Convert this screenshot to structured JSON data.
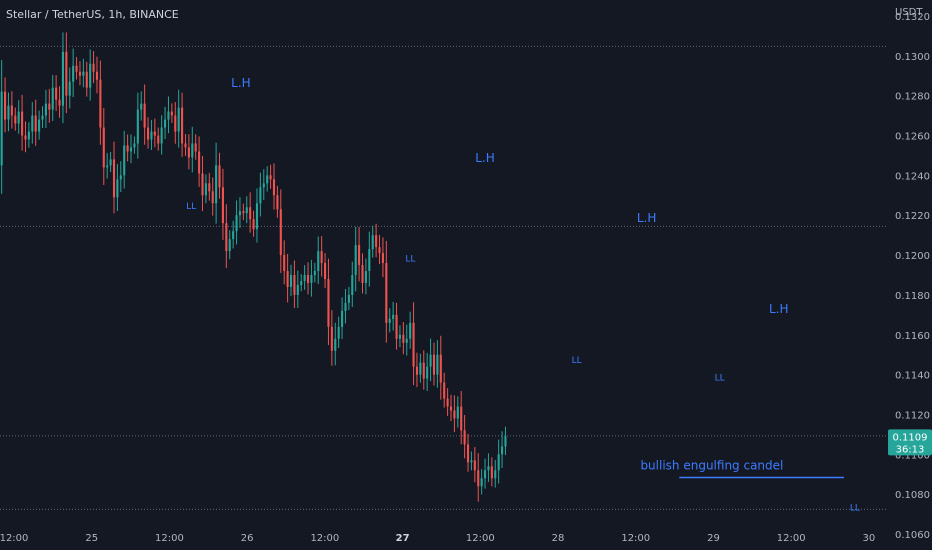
{
  "chart_data": {
    "type": "candlestick",
    "title": "Stellar / TetherUS, 1h, BINANCE",
    "ylabel": "USDT",
    "ylim": [
      0.1052,
      0.1328
    ],
    "xlim": [
      -0.09,
      5.61
    ],
    "grid": false,
    "y_ticks": [
      0.106,
      0.108,
      0.11,
      0.112,
      0.114,
      0.116,
      0.118,
      0.12,
      0.122,
      0.124,
      0.126,
      0.128,
      0.13,
      0.132
    ],
    "x_ticks": [
      {
        "pos": 0.0,
        "label": "12:00"
      },
      {
        "pos": 0.5,
        "label": "25"
      },
      {
        "pos": 1.0,
        "label": "12:00"
      },
      {
        "pos": 1.5,
        "label": "26"
      },
      {
        "pos": 2.0,
        "label": "12:00"
      },
      {
        "pos": 2.5,
        "label": "27",
        "bold": true
      },
      {
        "pos": 3.0,
        "label": "12:00"
      },
      {
        "pos": 3.5,
        "label": "28"
      },
      {
        "pos": 4.0,
        "label": "12:00"
      },
      {
        "pos": 4.5,
        "label": "29"
      },
      {
        "pos": 5.0,
        "label": "12:00"
      },
      {
        "pos": 5.5,
        "label": "30"
      },
      {
        "pos": 6.0,
        "label": "12:00"
      }
    ],
    "candle_start": -0.145,
    "candle_step": 0.0219,
    "closes": [
      0.1232,
      0.1236,
      0.1245,
      0.1282,
      0.1268,
      0.1275,
      0.127,
      0.1266,
      0.1272,
      0.126,
      0.1258,
      0.1262,
      0.127,
      0.1262,
      0.1268,
      0.127,
      0.1276,
      0.1273,
      0.1284,
      0.1278,
      0.1275,
      0.1302,
      0.128,
      0.1287,
      0.1295,
      0.1292,
      0.129,
      0.1292,
      0.1284,
      0.1296,
      0.1292,
      0.1288,
      0.1264,
      0.1244,
      0.1245,
      0.1248,
      0.1229,
      0.1238,
      0.124,
      0.1255,
      0.1252,
      0.1254,
      0.1256,
      0.1273,
      0.1276,
      0.1264,
      0.1258,
      0.1262,
      0.126,
      0.1256,
      0.1264,
      0.1268,
      0.1272,
      0.127,
      0.1262,
      0.1274,
      0.1256,
      0.1254,
      0.1249,
      0.1256,
      0.1252,
      0.1241,
      0.123,
      0.1236,
      0.1232,
      0.1226,
      0.1245,
      0.1234,
      0.1216,
      0.1202,
      0.1208,
      0.1212,
      0.122,
      0.1222,
      0.1221,
      0.1224,
      0.1218,
      0.1213,
      0.1226,
      0.1234,
      0.1236,
      0.124,
      0.1238,
      0.123,
      0.1223,
      0.12,
      0.1192,
      0.1184,
      0.119,
      0.118,
      0.1185,
      0.1187,
      0.119,
      0.1186,
      0.119,
      0.1192,
      0.1202,
      0.1196,
      0.1188,
      0.1164,
      0.1152,
      0.1158,
      0.1164,
      0.1172,
      0.1176,
      0.118,
      0.119,
      0.1205,
      0.1195,
      0.1186,
      0.1192,
      0.1203,
      0.121,
      0.1204,
      0.1201,
      0.1196,
      0.1166,
      0.1168,
      0.117,
      0.1158,
      0.116,
      0.1156,
      0.1158,
      0.1166,
      0.1144,
      0.114,
      0.1146,
      0.1138,
      0.1144,
      0.115,
      0.114,
      0.115,
      0.1136,
      0.1128,
      0.1124,
      0.1122,
      0.1118,
      0.1124,
      0.1112,
      0.1105,
      0.1096,
      0.1097,
      0.1092,
      0.1084,
      0.1088,
      0.1092,
      0.1094,
      0.1088,
      0.1092,
      0.11,
      0.1104,
      0.1109
    ],
    "annotations": {
      "lh": [
        {
          "label": "L.H",
          "x": 1.46,
          "y": 0.12843
        },
        {
          "label": "L.H",
          "x": 3.03,
          "y": 0.12466
        },
        {
          "label": "L.H",
          "x": 4.07,
          "y": 0.12167
        },
        {
          "label": "L.H",
          "x": 4.92,
          "y": 0.11709
        }
      ],
      "ll": [
        {
          "label": "LL",
          "x": 1.14,
          "y": 0.12232
        },
        {
          "label": "LL",
          "x": 2.55,
          "y": 0.11968
        },
        {
          "label": "LL",
          "x": 3.62,
          "y": 0.11458
        },
        {
          "label": "LL",
          "x": 4.54,
          "y": 0.11371
        },
        {
          "label": "LL",
          "x": 5.41,
          "y": 0.10718
        }
      ],
      "note": {
        "text": "bullish engulfing candel",
        "x": 4.49,
        "y": 0.10923
      },
      "note_line": {
        "x1": 4.28,
        "x2": 5.34,
        "y": 0.10884
      }
    },
    "horizontal_lines": [
      0.13047,
      0.12144,
      0.11093,
      0.10724
    ],
    "last_price": {
      "value": "0.1109",
      "countdown": "36:13"
    }
  }
}
